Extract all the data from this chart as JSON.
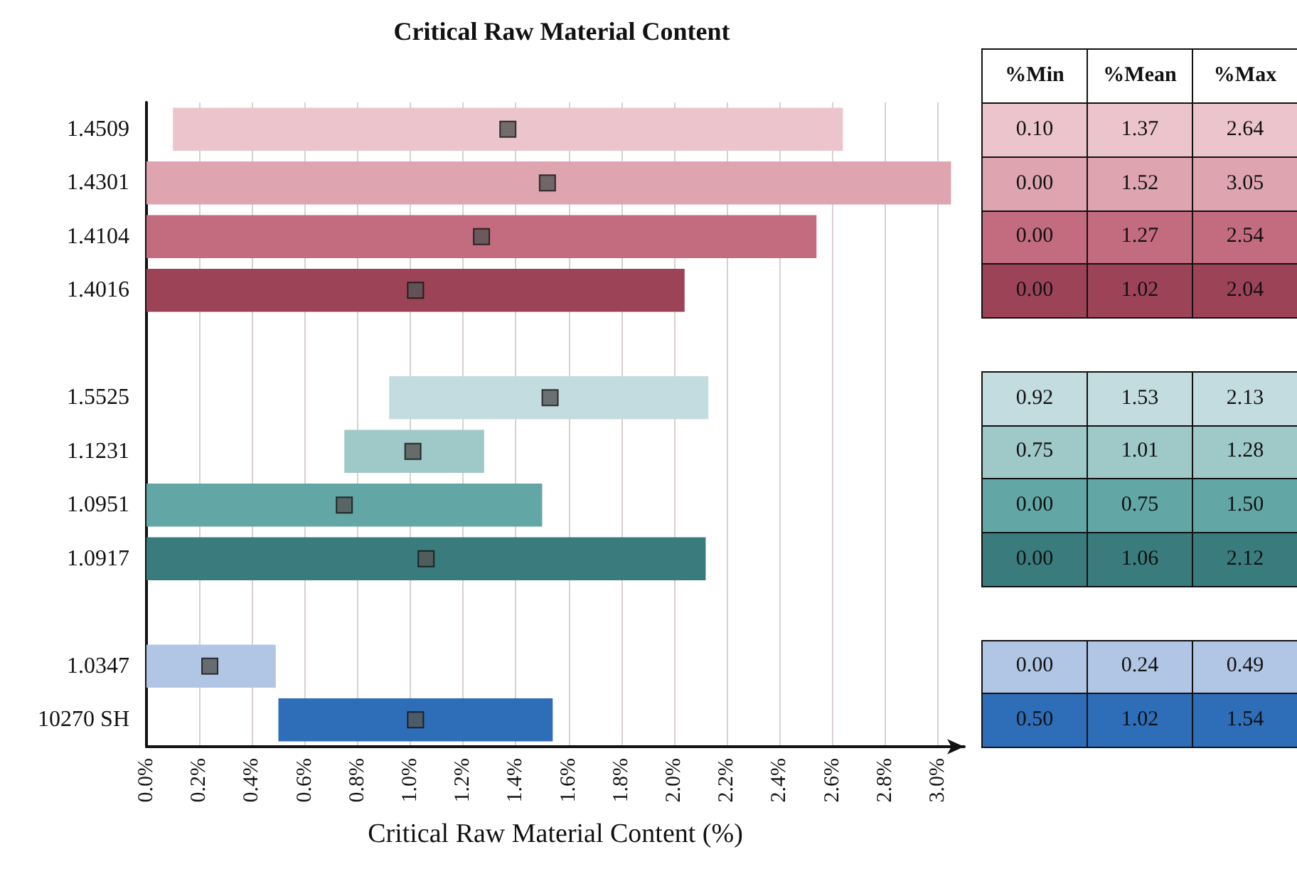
{
  "chart_data": [
    {
      "type": "bar",
      "title": "Critical Raw Material Content",
      "xlabel": "Critical Raw Material Content (%)",
      "orientation": "horizontal",
      "categories": [
        "1.4509",
        "1.4301",
        "1.4104",
        "1.4016",
        null,
        "1.5525",
        "1.1231",
        "1.0951",
        "1.0917",
        null,
        "1.0347",
        "10270 SH"
      ],
      "series": [
        {
          "type": "bar",
          "colors": [
            "#ecc5cc",
            "#dea4b0",
            "#c36b7f",
            "#9c4358",
            null,
            "#c3dcdf",
            "#9fc8c8",
            "#62a7a6",
            "#3a7c7e",
            null,
            "#b1c5e4",
            "#2e6db8"
          ],
          "base": [
            0.1,
            0.0,
            0.0,
            0.0,
            null,
            0.92,
            0.75,
            0.0,
            0.0,
            null,
            0.0,
            0.5
          ],
          "values": [
            2.54,
            3.05,
            2.54,
            2.04,
            null,
            1.21,
            0.53,
            1.5,
            2.12,
            null,
            0.49,
            1.04
          ]
        },
        {
          "type": "scatter",
          "color": "#555555",
          "marker": "square",
          "values": [
            1.37,
            1.52,
            1.27,
            1.02,
            null,
            1.53,
            1.01,
            0.75,
            1.06,
            null,
            0.24,
            1.02
          ]
        }
      ],
      "xlim": [
        0,
        3.1
      ],
      "xticks": [
        {
          "value": 0,
          "label": "0.0%"
        },
        {
          "value": 0.2,
          "label": "0.2%"
        },
        {
          "value": 0.4,
          "label": "0.4%"
        },
        {
          "value": 0.6,
          "label": "0.6%"
        },
        {
          "value": 0.8,
          "label": "0.8%"
        },
        {
          "value": 1.0,
          "label": "1.0%"
        },
        {
          "value": 1.2,
          "label": "1.2%"
        },
        {
          "value": 1.4,
          "label": "1.4%"
        },
        {
          "value": 1.6,
          "label": "1.6%"
        },
        {
          "value": 1.8,
          "label": "1.8%"
        },
        {
          "value": 2.0,
          "label": "2.0%"
        },
        {
          "value": 2.2,
          "label": "2.2%"
        },
        {
          "value": 2.4,
          "label": "2.4%"
        },
        {
          "value": 2.6,
          "label": "2.6%"
        },
        {
          "value": 2.8,
          "label": "2.8%"
        },
        {
          "value": 3.0,
          "label": "3.0%"
        }
      ],
      "grid": "x"
    },
    {
      "type": "other",
      "categories": [
        "%Min",
        "%Mean",
        "%Max"
      ],
      "series": [
        {
          "color": "#ecc5cc",
          "values": [
            0.1,
            1.37,
            2.64
          ],
          "value_labels": [
            "0.10",
            "1.37",
            "2.64"
          ]
        },
        {
          "color": "#dea4b0",
          "values": [
            0.0,
            1.52,
            3.05
          ],
          "value_labels": [
            "0.00",
            "1.52",
            "3.05"
          ]
        },
        {
          "color": "#c36b7f",
          "values": [
            0.0,
            1.27,
            2.54
          ],
          "value_labels": [
            "0.00",
            "1.27",
            "2.54"
          ]
        },
        {
          "color": "#9c4358",
          "values": [
            0.0,
            1.02,
            2.04
          ],
          "value_labels": [
            "0.00",
            "1.02",
            "2.04"
          ]
        },
        {
          "color": "#c3dcdf",
          "values": [
            0.92,
            1.53,
            2.13
          ],
          "value_labels": [
            "0.92",
            "1.53",
            "2.13"
          ]
        },
        {
          "color": "#9fc8c8",
          "values": [
            0.75,
            1.01,
            1.28
          ],
          "value_labels": [
            "0.75",
            "1.01",
            "1.28"
          ]
        },
        {
          "color": "#62a7a6",
          "values": [
            0.0,
            0.75,
            1.5
          ],
          "value_labels": [
            "0.00",
            "0.75",
            "1.50"
          ]
        },
        {
          "color": "#3a7c7e",
          "values": [
            0.0,
            1.06,
            2.12
          ],
          "value_labels": [
            "0.00",
            "1.06",
            "2.12"
          ]
        },
        {
          "color": "#b1c5e4",
          "values": [
            0.0,
            0.24,
            0.49
          ],
          "value_labels": [
            "0.00",
            "0.24",
            "0.49"
          ]
        },
        {
          "color": "#2e6db8",
          "values": [
            0.5,
            1.02,
            1.54
          ],
          "value_labels": [
            "0.50",
            "1.02",
            "1.54"
          ]
        }
      ]
    }
  ]
}
